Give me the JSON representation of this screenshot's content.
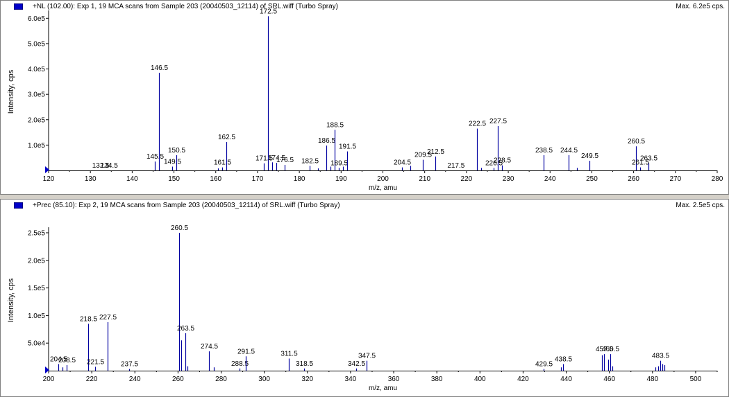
{
  "chart_data": [
    {
      "type": "bar",
      "title": "+NL (102.00): Exp 1, 19 MCA scans from Sample 203 (20040503_12114) of SRL.wiff (Turbo Spray)",
      "max_label": "Max. 6.2e5 cps.",
      "xlabel": "m/z, amu",
      "ylabel": "Intensity, cps",
      "xlim": [
        120,
        280
      ],
      "ylim": [
        0,
        620000
      ],
      "x_ticks": [
        120,
        130,
        140,
        150,
        160,
        170,
        180,
        190,
        200,
        210,
        220,
        230,
        240,
        250,
        260,
        270,
        280
      ],
      "y_ticks": [
        {
          "value": 100000,
          "label": "1.0e5"
        },
        {
          "value": 200000,
          "label": "2.0e5"
        },
        {
          "value": 300000,
          "label": "3.0e5"
        },
        {
          "value": 400000,
          "label": "4.0e5"
        },
        {
          "value": 500000,
          "label": "5.0e5"
        },
        {
          "value": 600000,
          "label": "6.0e5"
        }
      ],
      "peaks": [
        {
          "x": 145.5,
          "y": 35000,
          "label": "145.5"
        },
        {
          "x": 146.5,
          "y": 385000,
          "label": "146.5"
        },
        {
          "x": 149.5,
          "y": 15000,
          "label": "149.5"
        },
        {
          "x": 150.5,
          "y": 60000,
          "label": "150.5"
        },
        {
          "x": 160.5,
          "y": 8000
        },
        {
          "x": 161.5,
          "y": 12000,
          "label": "161.5"
        },
        {
          "x": 162.5,
          "y": 112000,
          "label": "162.5"
        },
        {
          "x": 171.5,
          "y": 28000,
          "label": "171.5"
        },
        {
          "x": 172.5,
          "y": 608000,
          "label": "172.5"
        },
        {
          "x": 173.5,
          "y": 32000
        },
        {
          "x": 174.5,
          "y": 30000,
          "label": "174.5"
        },
        {
          "x": 176.5,
          "y": 22000,
          "label": "176.5"
        },
        {
          "x": 182.5,
          "y": 18000,
          "label": "182.5"
        },
        {
          "x": 184.5,
          "y": 8000
        },
        {
          "x": 186.5,
          "y": 98000,
          "label": "186.5"
        },
        {
          "x": 187.5,
          "y": 15000
        },
        {
          "x": 188.5,
          "y": 160000,
          "label": "188.5"
        },
        {
          "x": 189.5,
          "y": 10000,
          "label": "189.5"
        },
        {
          "x": 190.5,
          "y": 15000
        },
        {
          "x": 191.5,
          "y": 75000,
          "label": "191.5"
        },
        {
          "x": 204.5,
          "y": 12000,
          "label": "204.5"
        },
        {
          "x": 206.5,
          "y": 18000
        },
        {
          "x": 209.5,
          "y": 42000,
          "label": "209.5"
        },
        {
          "x": 212.5,
          "y": 55000,
          "label": "212.5"
        },
        {
          "x": 222.5,
          "y": 165000,
          "label": "222.5"
        },
        {
          "x": 223.5,
          "y": 10000
        },
        {
          "x": 226.5,
          "y": 10000,
          "label": "226.5"
        },
        {
          "x": 227.5,
          "y": 175000,
          "label": "227.5"
        },
        {
          "x": 228.5,
          "y": 20000,
          "label": "228.5"
        },
        {
          "x": 238.5,
          "y": 60000,
          "label": "238.5"
        },
        {
          "x": 244.5,
          "y": 60000,
          "label": "244.5"
        },
        {
          "x": 246.5,
          "y": 10000
        },
        {
          "x": 249.5,
          "y": 38000,
          "label": "249.5"
        },
        {
          "x": 260.5,
          "y": 95000,
          "label": "260.5"
        },
        {
          "x": 261.5,
          "y": 12000,
          "label": "261.5"
        },
        {
          "x": 263.5,
          "y": 28000,
          "label": "263.5"
        }
      ],
      "extra_labels": [
        {
          "x": 132.5,
          "label": "132.5"
        },
        {
          "x": 134.5,
          "label": "134.5"
        },
        {
          "x": 217.5,
          "label": "217.5"
        }
      ]
    },
    {
      "type": "bar",
      "title": "+Prec (85.10): Exp 2, 19 MCA scans from Sample 203 (20040503_12114) of SRL.wiff (Turbo Spray)",
      "max_label": "Max. 2.5e5 cps.",
      "xlabel": "m/z, amu",
      "ylabel": "Intensity, cps",
      "xlim": [
        200,
        510
      ],
      "ylim": [
        0,
        255000
      ],
      "x_ticks": [
        200,
        220,
        240,
        260,
        280,
        300,
        320,
        340,
        360,
        380,
        400,
        420,
        440,
        460,
        480,
        500
      ],
      "y_ticks": [
        {
          "value": 50000,
          "label": "5.0e4"
        },
        {
          "value": 100000,
          "label": "1.0e5"
        },
        {
          "value": 150000,
          "label": "1.5e5"
        },
        {
          "value": 200000,
          "label": "2.0e5"
        },
        {
          "value": 250000,
          "label": "2.5e5"
        }
      ],
      "peaks": [
        {
          "x": 204.5,
          "y": 12000,
          "label": "204.5"
        },
        {
          "x": 206.5,
          "y": 6000
        },
        {
          "x": 208.5,
          "y": 10000,
          "label": "208.5"
        },
        {
          "x": 218.5,
          "y": 85000,
          "label": "218.5"
        },
        {
          "x": 221.5,
          "y": 7000,
          "label": "221.5"
        },
        {
          "x": 227.5,
          "y": 88000,
          "label": "227.5"
        },
        {
          "x": 237.5,
          "y": 3000,
          "label": "237.5"
        },
        {
          "x": 260.5,
          "y": 250000,
          "label": "260.5"
        },
        {
          "x": 261.5,
          "y": 55000
        },
        {
          "x": 263.5,
          "y": 68000,
          "label": "263.5"
        },
        {
          "x": 264.5,
          "y": 8000
        },
        {
          "x": 274.5,
          "y": 35000,
          "label": "274.5"
        },
        {
          "x": 276.5,
          "y": 6000
        },
        {
          "x": 288.5,
          "y": 4000,
          "label": "288.5"
        },
        {
          "x": 291.5,
          "y": 26000,
          "label": "291.5"
        },
        {
          "x": 311.5,
          "y": 22000,
          "label": "311.5"
        },
        {
          "x": 318.5,
          "y": 4000,
          "label": "318.5"
        },
        {
          "x": 342.5,
          "y": 4000,
          "label": "342.5"
        },
        {
          "x": 347.5,
          "y": 18000,
          "label": "347.5"
        },
        {
          "x": 429.5,
          "y": 3000,
          "label": "429.5"
        },
        {
          "x": 437.5,
          "y": 6000
        },
        {
          "x": 438.5,
          "y": 12000,
          "label": "438.5"
        },
        {
          "x": 456.5,
          "y": 28000
        },
        {
          "x": 457.5,
          "y": 30000,
          "label": "457.5"
        },
        {
          "x": 459.5,
          "y": 20000
        },
        {
          "x": 460.5,
          "y": 30000,
          "label": "460.5"
        },
        {
          "x": 461.5,
          "y": 8000
        },
        {
          "x": 481.5,
          "y": 6000
        },
        {
          "x": 482.5,
          "y": 8000
        },
        {
          "x": 483.5,
          "y": 18000,
          "label": "483.5"
        },
        {
          "x": 484.5,
          "y": 12000
        },
        {
          "x": 485.5,
          "y": 10000
        }
      ],
      "extra_labels": []
    }
  ]
}
